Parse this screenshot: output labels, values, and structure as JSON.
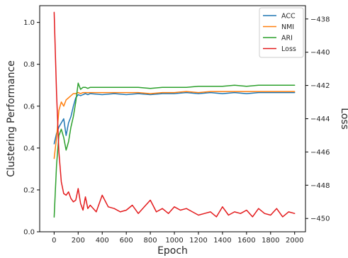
{
  "chart_data": {
    "type": "line",
    "title": "",
    "xlabel": "Epoch",
    "ylabel_left": "Clustering Performance",
    "ylabel_right": "Loss",
    "xlim": [
      -120,
      2090
    ],
    "ylim_left": [
      0.0,
      1.08
    ],
    "ylim_right": [
      -450.8,
      -437.2
    ],
    "x_ticks": [
      0,
      200,
      400,
      600,
      800,
      1000,
      1200,
      1400,
      1600,
      1800,
      2000
    ],
    "y_ticks_left": [
      0.0,
      0.2,
      0.4,
      0.6,
      0.8,
      1.0
    ],
    "y_ticks_right": [
      -450,
      -448,
      -446,
      -444,
      -442,
      -440,
      -438
    ],
    "legend_position": "top-right",
    "series": [
      {
        "name": "ACC",
        "color": "#1f77b4",
        "axis": "left",
        "x": [
          0,
          20,
          40,
          60,
          80,
          100,
          120,
          140,
          160,
          180,
          200,
          220,
          240,
          260,
          280,
          300,
          400,
          500,
          600,
          700,
          800,
          900,
          1000,
          1100,
          1200,
          1300,
          1400,
          1500,
          1600,
          1700,
          1800,
          1900,
          2000
        ],
        "y": [
          0.42,
          0.47,
          0.5,
          0.52,
          0.54,
          0.46,
          0.52,
          0.55,
          0.6,
          0.64,
          0.655,
          0.65,
          0.655,
          0.66,
          0.655,
          0.66,
          0.655,
          0.66,
          0.655,
          0.66,
          0.655,
          0.66,
          0.66,
          0.665,
          0.66,
          0.665,
          0.66,
          0.665,
          0.66,
          0.665,
          0.665,
          0.665,
          0.665
        ]
      },
      {
        "name": "NMI",
        "color": "#ff7f0e",
        "axis": "left",
        "x": [
          0,
          20,
          40,
          60,
          80,
          100,
          120,
          140,
          160,
          180,
          200,
          220,
          240,
          260,
          280,
          300,
          400,
          500,
          600,
          700,
          800,
          900,
          1000,
          1100,
          1200,
          1300,
          1400,
          1500,
          1600,
          1700,
          1800,
          1900,
          2000
        ],
        "y": [
          0.35,
          0.45,
          0.58,
          0.62,
          0.6,
          0.63,
          0.64,
          0.65,
          0.66,
          0.66,
          0.665,
          0.66,
          0.665,
          0.665,
          0.665,
          0.665,
          0.665,
          0.665,
          0.665,
          0.665,
          0.66,
          0.665,
          0.665,
          0.67,
          0.665,
          0.67,
          0.67,
          0.67,
          0.67,
          0.67,
          0.67,
          0.67,
          0.67
        ]
      },
      {
        "name": "ARI",
        "color": "#2ca02c",
        "axis": "left",
        "x": [
          0,
          20,
          40,
          60,
          80,
          100,
          120,
          140,
          160,
          180,
          200,
          220,
          240,
          260,
          280,
          300,
          400,
          500,
          600,
          700,
          800,
          900,
          1000,
          1100,
          1200,
          1300,
          1400,
          1500,
          1600,
          1700,
          1800,
          1900,
          2000
        ],
        "y": [
          0.07,
          0.32,
          0.46,
          0.49,
          0.45,
          0.39,
          0.43,
          0.5,
          0.55,
          0.62,
          0.71,
          0.68,
          0.69,
          0.69,
          0.685,
          0.69,
          0.69,
          0.69,
          0.69,
          0.69,
          0.685,
          0.69,
          0.69,
          0.69,
          0.695,
          0.695,
          0.695,
          0.7,
          0.695,
          0.7,
          0.7,
          0.7,
          0.7
        ]
      },
      {
        "name": "Loss",
        "color": "#e31a1c",
        "axis": "right",
        "x": [
          0,
          20,
          40,
          60,
          80,
          100,
          120,
          140,
          160,
          180,
          200,
          220,
          240,
          260,
          280,
          300,
          350,
          400,
          450,
          500,
          550,
          600,
          650,
          700,
          750,
          800,
          850,
          900,
          950,
          1000,
          1050,
          1100,
          1150,
          1200,
          1250,
          1300,
          1350,
          1400,
          1450,
          1500,
          1550,
          1600,
          1650,
          1700,
          1750,
          1800,
          1850,
          1900,
          1950,
          2000
        ],
        "y": [
          -437.6,
          -442.5,
          -446.0,
          -447.8,
          -448.5,
          -448.6,
          -448.4,
          -448.8,
          -449.0,
          -448.9,
          -448.2,
          -449.1,
          -449.5,
          -448.7,
          -449.4,
          -449.2,
          -449.6,
          -448.6,
          -449.3,
          -449.4,
          -449.6,
          -449.5,
          -449.2,
          -449.7,
          -449.3,
          -448.9,
          -449.6,
          -449.4,
          -449.7,
          -449.3,
          -449.5,
          -449.4,
          -449.6,
          -449.8,
          -449.7,
          -449.6,
          -449.9,
          -449.3,
          -449.8,
          -449.6,
          -449.7,
          -449.5,
          -449.9,
          -449.4,
          -449.7,
          -449.8,
          -449.4,
          -449.9,
          -449.6,
          -449.7
        ]
      }
    ]
  }
}
